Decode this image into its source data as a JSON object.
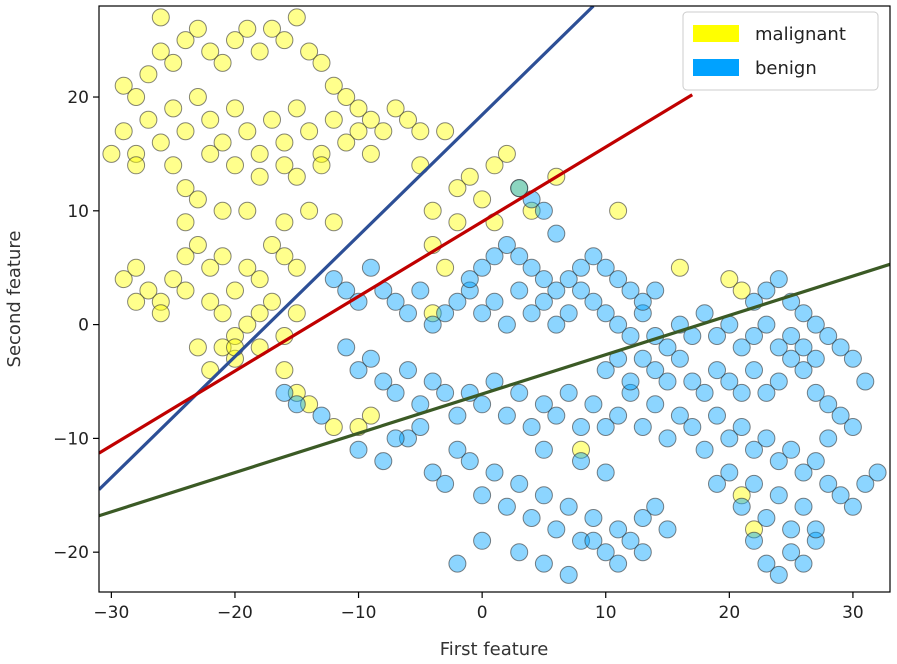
{
  "chart_data": {
    "type": "scatter",
    "xlabel": "First feature",
    "ylabel": "Second feature",
    "xlim": [
      -31,
      33
    ],
    "ylim": [
      -23.5,
      28
    ],
    "xticks": [
      -30,
      -20,
      -10,
      0,
      10,
      20,
      30
    ],
    "yticks": [
      -20,
      -10,
      0,
      10,
      20
    ],
    "xtick_labels": [
      "−30",
      "−20",
      "−10",
      "0",
      "10",
      "20",
      "30"
    ],
    "ytick_labels": [
      "−20",
      "−10",
      "0",
      "10",
      "20"
    ],
    "grid": false,
    "legend_position": "top-right",
    "series": [
      {
        "name": "malignant",
        "color": "#ffff00",
        "points": [
          [
            -26,
            27
          ],
          [
            -29,
            21
          ],
          [
            -28,
            20
          ],
          [
            -27,
            22
          ],
          [
            -26,
            24
          ],
          [
            -25,
            23
          ],
          [
            -24,
            25
          ],
          [
            -23,
            26
          ],
          [
            -22,
            24
          ],
          [
            -21,
            23
          ],
          [
            -20,
            25
          ],
          [
            -19,
            26
          ],
          [
            -18,
            24
          ],
          [
            -17,
            26
          ],
          [
            -16,
            25
          ],
          [
            -15,
            27
          ],
          [
            -14,
            24
          ],
          [
            -13,
            23
          ],
          [
            -12,
            21
          ],
          [
            -11,
            20
          ],
          [
            -10,
            19
          ],
          [
            -9,
            18
          ],
          [
            -8,
            17
          ],
          [
            -7,
            19
          ],
          [
            -6,
            18
          ],
          [
            -5,
            17
          ],
          [
            -29,
            17
          ],
          [
            -28,
            15
          ],
          [
            -27,
            18
          ],
          [
            -26,
            16
          ],
          [
            -25,
            19
          ],
          [
            -24,
            17
          ],
          [
            -23,
            20
          ],
          [
            -22,
            18
          ],
          [
            -21,
            16
          ],
          [
            -20,
            19
          ],
          [
            -19,
            17
          ],
          [
            -18,
            15
          ],
          [
            -17,
            18
          ],
          [
            -16,
            16
          ],
          [
            -15,
            19
          ],
          [
            -14,
            17
          ],
          [
            -13,
            15
          ],
          [
            -12,
            18
          ],
          [
            -11,
            16
          ],
          [
            -10,
            17
          ],
          [
            -9,
            15
          ],
          [
            -30,
            15
          ],
          [
            -28,
            14
          ],
          [
            -25,
            14
          ],
          [
            -22,
            15
          ],
          [
            -20,
            14
          ],
          [
            -18,
            13
          ],
          [
            -16,
            14
          ],
          [
            -15,
            13
          ],
          [
            -13,
            14
          ],
          [
            -24,
            12
          ],
          [
            -24,
            9
          ],
          [
            -23,
            11
          ],
          [
            -21,
            10
          ],
          [
            -19,
            10
          ],
          [
            -16,
            9
          ],
          [
            -14,
            10
          ],
          [
            -12,
            9
          ],
          [
            -29,
            4
          ],
          [
            -28,
            5
          ],
          [
            -27,
            3
          ],
          [
            -26,
            2
          ],
          [
            -25,
            4
          ],
          [
            -24,
            6
          ],
          [
            -23,
            7
          ],
          [
            -22,
            5
          ],
          [
            -21,
            6
          ],
          [
            -20,
            3
          ],
          [
            -19,
            5
          ],
          [
            -18,
            4
          ],
          [
            -17,
            7
          ],
          [
            -16,
            6
          ],
          [
            -15,
            5
          ],
          [
            -28,
            2
          ],
          [
            -26,
            1
          ],
          [
            -24,
            3
          ],
          [
            -22,
            2
          ],
          [
            -21,
            1
          ],
          [
            -20,
            -1
          ],
          [
            -19,
            0
          ],
          [
            -18,
            1
          ],
          [
            -17,
            2
          ],
          [
            -16,
            -1
          ],
          [
            -15,
            1
          ],
          [
            -23,
            -2
          ],
          [
            -21,
            -2
          ],
          [
            -20,
            -3
          ],
          [
            -18,
            -2
          ],
          [
            -16,
            -4
          ],
          [
            -15,
            -6
          ],
          [
            -14,
            -7
          ],
          [
            -12,
            -9
          ],
          [
            -10,
            -9
          ],
          [
            -9,
            -8
          ],
          [
            -4,
            10
          ],
          [
            -4,
            7
          ],
          [
            -3,
            5
          ],
          [
            -2,
            12
          ],
          [
            -1,
            13
          ],
          [
            0,
            11
          ],
          [
            1,
            14
          ],
          [
            2,
            15
          ],
          [
            3,
            12
          ],
          [
            4,
            10
          ],
          [
            -3,
            17
          ],
          [
            -5,
            14
          ],
          [
            -2,
            9
          ],
          [
            1,
            9
          ],
          [
            6,
            13
          ],
          [
            11,
            10
          ],
          [
            16,
            5
          ],
          [
            20,
            4
          ],
          [
            21,
            3
          ],
          [
            8,
            -11
          ],
          [
            21,
            -15
          ],
          [
            22,
            -18
          ],
          [
            -4,
            1
          ],
          [
            -20,
            -2
          ],
          [
            -22,
            -4
          ]
        ]
      },
      {
        "name": "benign",
        "color": "#00a2ff",
        "points": [
          [
            -12,
            4
          ],
          [
            -11,
            3
          ],
          [
            -10,
            2
          ],
          [
            -9,
            5
          ],
          [
            -8,
            3
          ],
          [
            -7,
            2
          ],
          [
            -6,
            1
          ],
          [
            -5,
            3
          ],
          [
            -4,
            0
          ],
          [
            -3,
            1
          ],
          [
            -2,
            2
          ],
          [
            -1,
            3
          ],
          [
            0,
            1
          ],
          [
            1,
            2
          ],
          [
            2,
            0
          ],
          [
            3,
            3
          ],
          [
            4,
            1
          ],
          [
            5,
            2
          ],
          [
            6,
            0
          ],
          [
            7,
            1
          ],
          [
            8,
            3
          ],
          [
            9,
            2
          ],
          [
            10,
            1
          ],
          [
            11,
            0
          ],
          [
            12,
            -1
          ],
          [
            13,
            1
          ],
          [
            14,
            -1
          ],
          [
            15,
            -2
          ],
          [
            16,
            0
          ],
          [
            17,
            -1
          ],
          [
            18,
            1
          ],
          [
            19,
            -1
          ],
          [
            20,
            0
          ],
          [
            21,
            -2
          ],
          [
            22,
            -1
          ],
          [
            23,
            0
          ],
          [
            24,
            -2
          ],
          [
            25,
            -1
          ],
          [
            26,
            -2
          ],
          [
            27,
            -3
          ],
          [
            -11,
            -2
          ],
          [
            -10,
            -4
          ],
          [
            -9,
            -3
          ],
          [
            -8,
            -5
          ],
          [
            -7,
            -6
          ],
          [
            -6,
            -4
          ],
          [
            -5,
            -7
          ],
          [
            -4,
            -5
          ],
          [
            -3,
            -6
          ],
          [
            -2,
            -8
          ],
          [
            -1,
            -6
          ],
          [
            0,
            -7
          ],
          [
            1,
            -5
          ],
          [
            2,
            -8
          ],
          [
            3,
            -6
          ],
          [
            4,
            -9
          ],
          [
            5,
            -7
          ],
          [
            6,
            -8
          ],
          [
            7,
            -6
          ],
          [
            8,
            -9
          ],
          [
            9,
            -7
          ],
          [
            10,
            -9
          ],
          [
            11,
            -8
          ],
          [
            12,
            -6
          ],
          [
            13,
            -9
          ],
          [
            14,
            -7
          ],
          [
            15,
            -10
          ],
          [
            16,
            -8
          ],
          [
            17,
            -9
          ],
          [
            18,
            -11
          ],
          [
            19,
            -8
          ],
          [
            20,
            -10
          ],
          [
            21,
            -9
          ],
          [
            22,
            -11
          ],
          [
            23,
            -10
          ],
          [
            24,
            -12
          ],
          [
            25,
            -11
          ],
          [
            26,
            -13
          ],
          [
            27,
            -12
          ],
          [
            28,
            -10
          ],
          [
            -10,
            -11
          ],
          [
            -8,
            -12
          ],
          [
            -6,
            -10
          ],
          [
            -4,
            -13
          ],
          [
            -3,
            -14
          ],
          [
            -1,
            -12
          ],
          [
            0,
            -15
          ],
          [
            1,
            -13
          ],
          [
            2,
            -16
          ],
          [
            3,
            -14
          ],
          [
            4,
            -17
          ],
          [
            5,
            -15
          ],
          [
            6,
            -18
          ],
          [
            7,
            -16
          ],
          [
            8,
            -19
          ],
          [
            9,
            -17
          ],
          [
            10,
            -20
          ],
          [
            11,
            -18
          ],
          [
            12,
            -19
          ],
          [
            13,
            -17
          ],
          [
            14,
            -16
          ],
          [
            15,
            -18
          ],
          [
            20,
            -13
          ],
          [
            21,
            -16
          ],
          [
            22,
            -14
          ],
          [
            23,
            -17
          ],
          [
            24,
            -15
          ],
          [
            25,
            -18
          ],
          [
            26,
            -16
          ],
          [
            27,
            -19
          ],
          [
            28,
            -14
          ],
          [
            29,
            -15
          ],
          [
            30,
            -16
          ],
          [
            31,
            -14
          ],
          [
            32,
            -13
          ],
          [
            30,
            -9
          ],
          [
            29,
            -8
          ],
          [
            28,
            -7
          ],
          [
            27,
            -6
          ],
          [
            26,
            -4
          ],
          [
            25,
            -3
          ],
          [
            24,
            -5
          ],
          [
            23,
            -6
          ],
          [
            22,
            -4
          ],
          [
            21,
            -6
          ],
          [
            20,
            -5
          ],
          [
            19,
            -4
          ],
          [
            18,
            -6
          ],
          [
            17,
            -5
          ],
          [
            16,
            -3
          ],
          [
            15,
            -5
          ],
          [
            14,
            -4
          ],
          [
            13,
            -3
          ],
          [
            12,
            -5
          ],
          [
            11,
            -3
          ],
          [
            10,
            -4
          ],
          [
            -2,
            -21
          ],
          [
            0,
            -19
          ],
          [
            3,
            -20
          ],
          [
            5,
            -21
          ],
          [
            7,
            -22
          ],
          [
            9,
            -19
          ],
          [
            11,
            -21
          ],
          [
            13,
            -20
          ],
          [
            22,
            -19
          ],
          [
            23,
            -21
          ],
          [
            24,
            -22
          ],
          [
            25,
            -20
          ],
          [
            26,
            -21
          ],
          [
            27,
            -18
          ],
          [
            3,
            12
          ],
          [
            4,
            11
          ],
          [
            5,
            10
          ],
          [
            6,
            8
          ],
          [
            2,
            7
          ],
          [
            1,
            6
          ],
          [
            0,
            5
          ],
          [
            -1,
            4
          ],
          [
            3,
            6
          ],
          [
            4,
            5
          ],
          [
            5,
            4
          ],
          [
            6,
            3
          ],
          [
            7,
            4
          ],
          [
            8,
            5
          ],
          [
            9,
            6
          ],
          [
            10,
            5
          ],
          [
            11,
            4
          ],
          [
            12,
            3
          ],
          [
            13,
            2
          ],
          [
            14,
            3
          ],
          [
            22,
            2
          ],
          [
            23,
            3
          ],
          [
            24,
            4
          ],
          [
            25,
            2
          ],
          [
            26,
            1
          ],
          [
            27,
            0
          ],
          [
            28,
            -1
          ],
          [
            29,
            -2
          ],
          [
            30,
            -3
          ],
          [
            31,
            -5
          ],
          [
            -16,
            -6
          ],
          [
            -15,
            -7
          ],
          [
            -13,
            -8
          ],
          [
            -7,
            -10
          ],
          [
            -5,
            -9
          ],
          [
            -2,
            -11
          ],
          [
            5,
            -11
          ],
          [
            8,
            -12
          ],
          [
            10,
            -13
          ],
          [
            19,
            -14
          ]
        ]
      }
    ],
    "lines": [
      {
        "color": "#2d4f96",
        "points": [
          [
            -31,
            -14.5
          ],
          [
            9,
            28
          ]
        ]
      },
      {
        "color": "#c00000",
        "points": [
          [
            -31,
            -11.3
          ],
          [
            17,
            20.2
          ]
        ]
      },
      {
        "color": "#3b5a25",
        "points": [
          [
            -31,
            -16.8
          ],
          [
            33,
            5.3
          ]
        ]
      }
    ]
  }
}
